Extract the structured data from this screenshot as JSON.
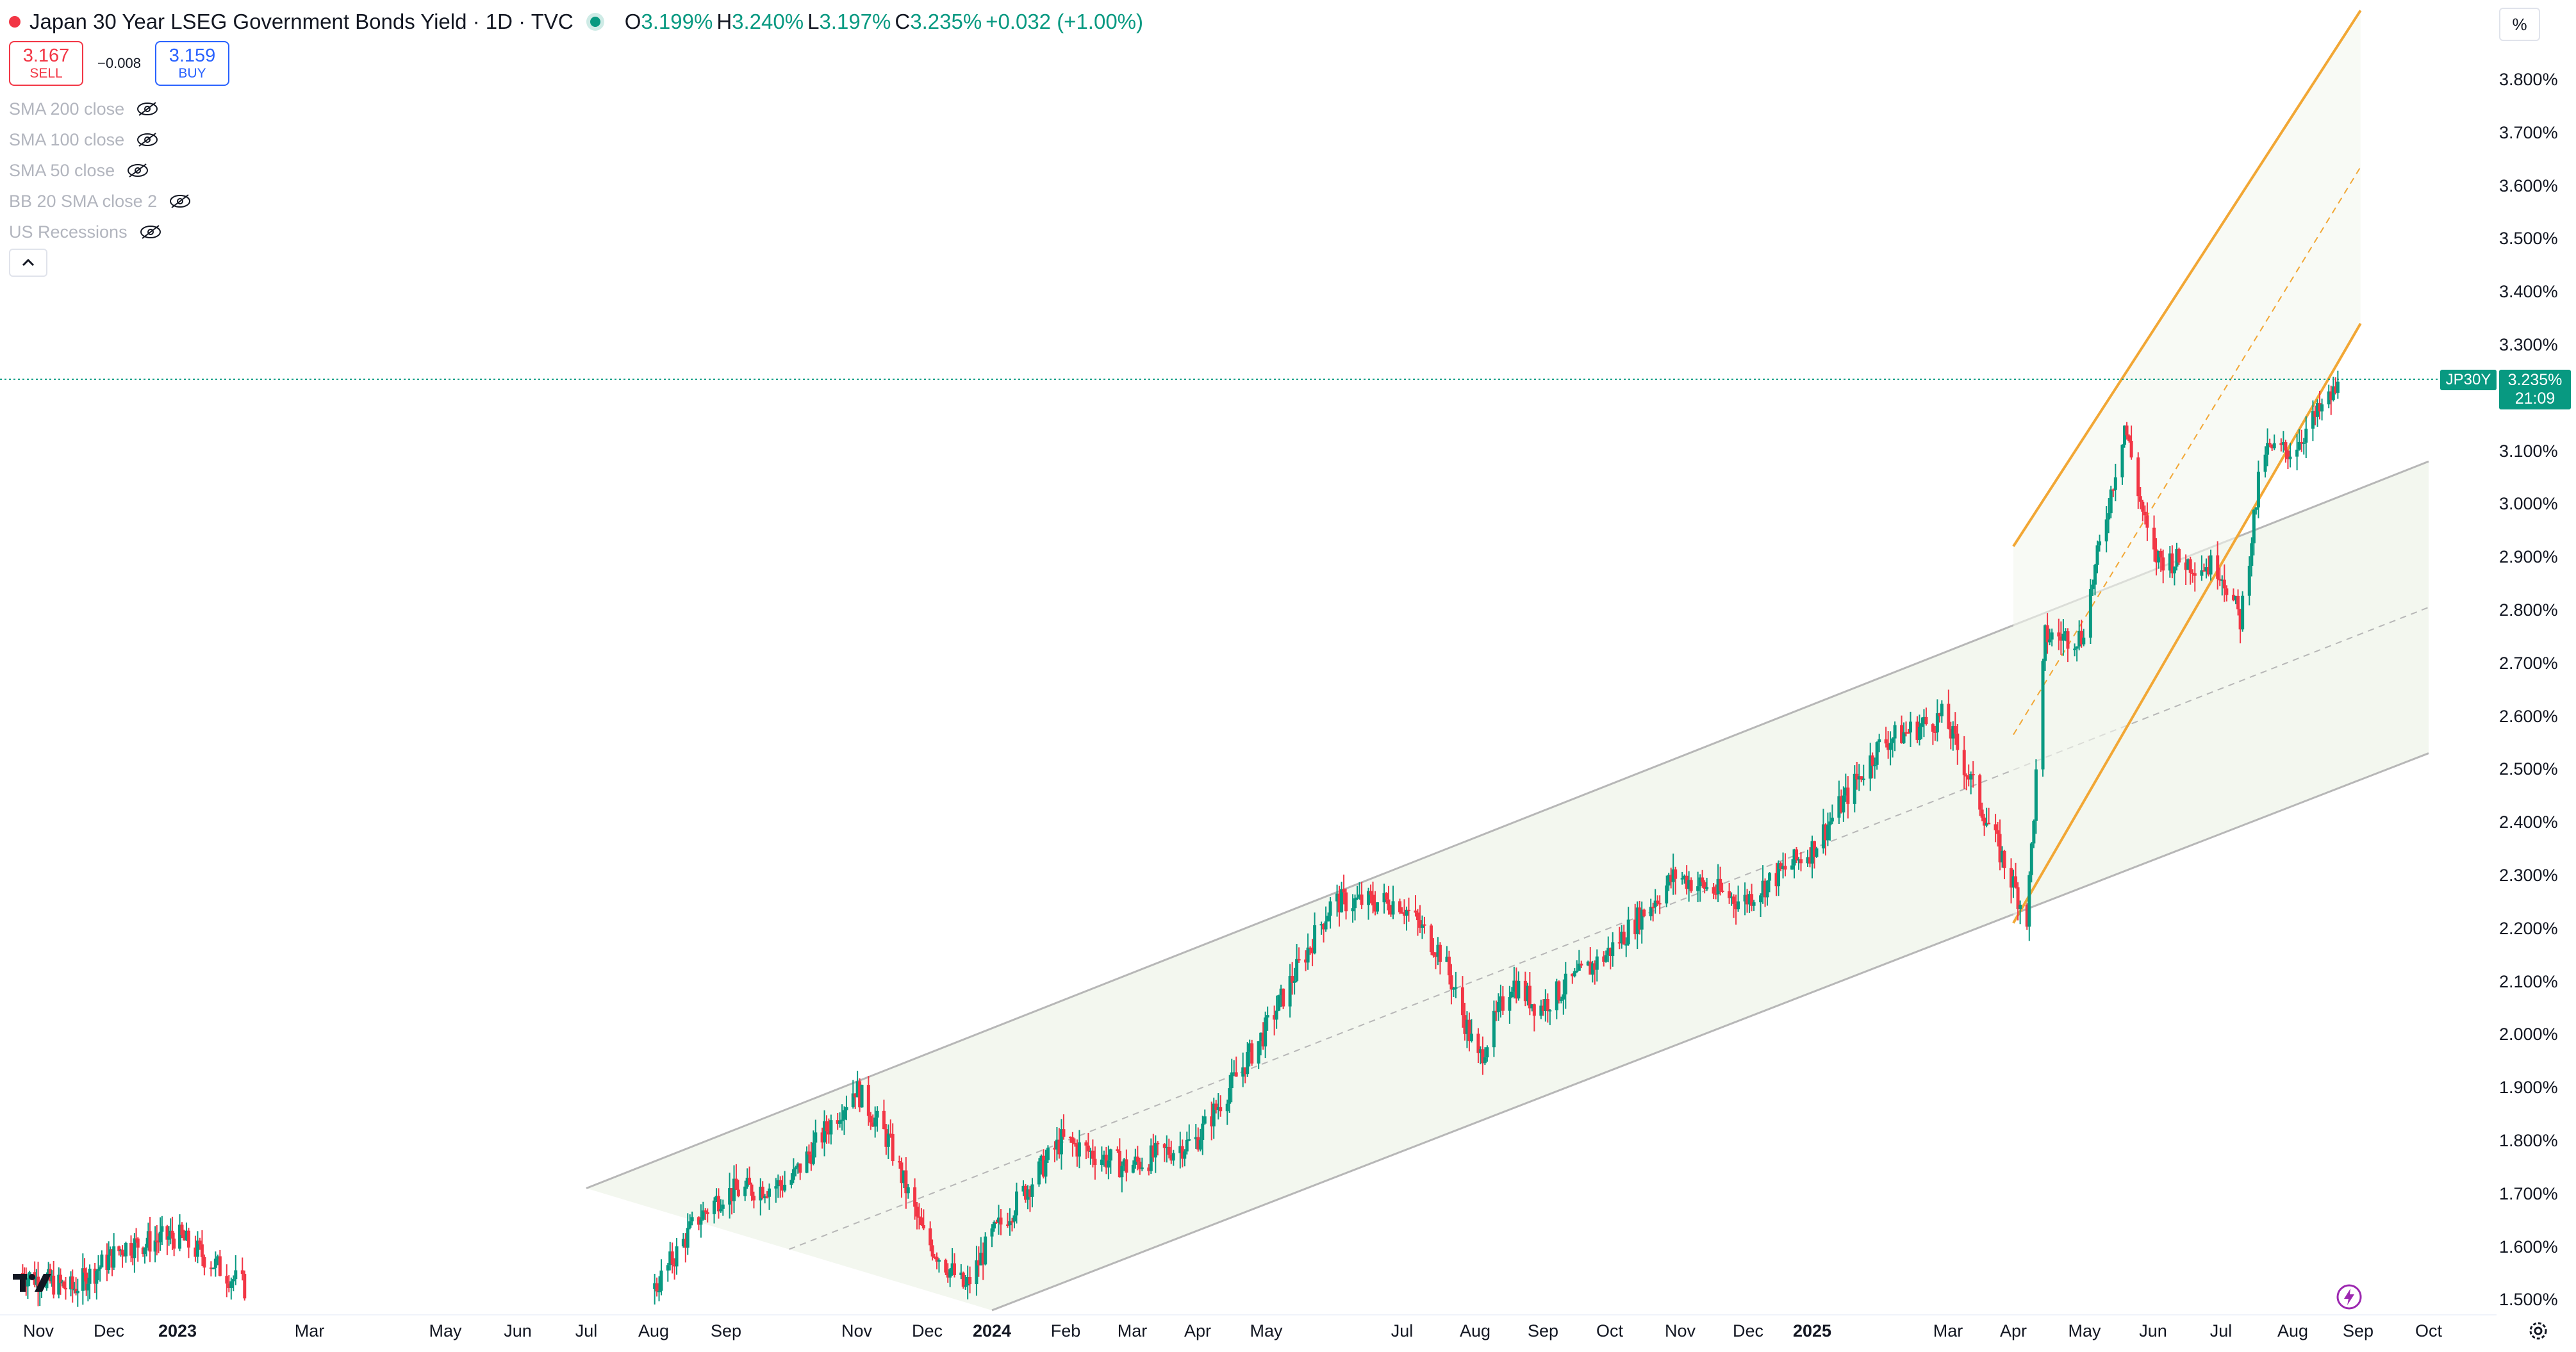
{
  "header": {
    "title": "Japan 30 Year LSEG Government Bonds Yield · 1D · TVC",
    "open_key": "O",
    "open_val": "3.199%",
    "high_key": "H",
    "high_val": "3.240%",
    "low_key": "L",
    "low_val": "3.197%",
    "close_key": "C",
    "close_val": "3.235%",
    "change": "+0.032 (+1.00%)"
  },
  "trade": {
    "sell_price": "3.167",
    "sell_label": "SELL",
    "spread": "−0.008",
    "buy_price": "3.159",
    "buy_label": "BUY"
  },
  "indicators": [
    {
      "label": "SMA 200 close"
    },
    {
      "label": "SMA 100 close"
    },
    {
      "label": "SMA 50 close"
    },
    {
      "label": "BB 20 SMA close 2"
    },
    {
      "label": "US Recessions"
    }
  ],
  "scale": {
    "unit_button": "%",
    "symbol_badge": "JP30Y",
    "last_price": "3.235%",
    "countdown": "21:09"
  },
  "colors": {
    "up": "#089981",
    "down": "#f23645",
    "channel_gray": "#b7b7b7",
    "channel_orange": "#f2a735",
    "channel_fill": "#f3f7ef"
  },
  "chart_data": {
    "type": "candlestick",
    "title": "Japan 30 Year LSEG Government Bonds Yield · 1D · TVC",
    "ylabel": "%",
    "ylim": [
      1.47,
      3.93
    ],
    "y_ticks": [
      "3.800%",
      "3.700%",
      "3.600%",
      "3.500%",
      "3.400%",
      "3.300%",
      "3.200%",
      "3.100%",
      "3.000%",
      "2.900%",
      "2.800%",
      "2.700%",
      "2.600%",
      "2.500%",
      "2.400%",
      "2.300%",
      "2.200%",
      "2.100%",
      "2.000%",
      "1.900%",
      "1.800%",
      "1.700%",
      "1.600%",
      "1.500%"
    ],
    "x_ticks": [
      {
        "label": "Nov",
        "bold": false
      },
      {
        "label": "Dec",
        "bold": false
      },
      {
        "label": "2023",
        "bold": true
      },
      {
        "label": "Mar",
        "bold": false
      },
      {
        "label": "May",
        "bold": false
      },
      {
        "label": "Jun",
        "bold": false
      },
      {
        "label": "Jul",
        "bold": false
      },
      {
        "label": "Aug",
        "bold": false
      },
      {
        "label": "Sep",
        "bold": false
      },
      {
        "label": "Nov",
        "bold": false
      },
      {
        "label": "Dec",
        "bold": false
      },
      {
        "label": "2024",
        "bold": true
      },
      {
        "label": "Feb",
        "bold": false
      },
      {
        "label": "Mar",
        "bold": false
      },
      {
        "label": "Apr",
        "bold": false
      },
      {
        "label": "May",
        "bold": false
      },
      {
        "label": "Jul",
        "bold": false
      },
      {
        "label": "Aug",
        "bold": false
      },
      {
        "label": "Sep",
        "bold": false
      },
      {
        "label": "Oct",
        "bold": false
      },
      {
        "label": "Nov",
        "bold": false
      },
      {
        "label": "Dec",
        "bold": false
      },
      {
        "label": "2025",
        "bold": true
      },
      {
        "label": "Mar",
        "bold": false
      },
      {
        "label": "Apr",
        "bold": false
      },
      {
        "label": "May",
        "bold": false
      },
      {
        "label": "Jun",
        "bold": false
      },
      {
        "label": "Jul",
        "bold": false
      },
      {
        "label": "Aug",
        "bold": false
      },
      {
        "label": "Sep",
        "bold": false
      },
      {
        "label": "Oct",
        "bold": false
      }
    ],
    "last_close": 3.235,
    "price_path": [
      {
        "date": "2022-10",
        "value": 1.55
      },
      {
        "date": "2022-11",
        "value": 1.52
      },
      {
        "date": "2022-12",
        "value": 1.6
      },
      {
        "date": "2023-01",
        "value": 1.62
      },
      {
        "date": "2023-02",
        "value": 1.52
      },
      {
        "date": "2023-08",
        "value": 1.52
      },
      {
        "date": "2023-08-20",
        "value": 1.65
      },
      {
        "date": "2023-09",
        "value": 1.7
      },
      {
        "date": "2023-10",
        "value": 1.72
      },
      {
        "date": "2023-10-31",
        "value": 1.9
      },
      {
        "date": "2023-11-15",
        "value": 1.8
      },
      {
        "date": "2023-12",
        "value": 1.62
      },
      {
        "date": "2023-12-20",
        "value": 1.52
      },
      {
        "date": "2024-01",
        "value": 1.62
      },
      {
        "date": "2024-02",
        "value": 1.8
      },
      {
        "date": "2024-03",
        "value": 1.75
      },
      {
        "date": "2024-04",
        "value": 1.8
      },
      {
        "date": "2024-05",
        "value": 2.0
      },
      {
        "date": "2024-06",
        "value": 2.25
      },
      {
        "date": "2024-07",
        "value": 2.25
      },
      {
        "date": "2024-07-20",
        "value": 2.15
      },
      {
        "date": "2024-08-05",
        "value": 1.95
      },
      {
        "date": "2024-08-20",
        "value": 2.1
      },
      {
        "date": "2024-09",
        "value": 2.05
      },
      {
        "date": "2024-10",
        "value": 2.15
      },
      {
        "date": "2024-11",
        "value": 2.3
      },
      {
        "date": "2024-12",
        "value": 2.25
      },
      {
        "date": "2025-01",
        "value": 2.35
      },
      {
        "date": "2025-02",
        "value": 2.55
      },
      {
        "date": "2025-03",
        "value": 2.6
      },
      {
        "date": "2025-04-07",
        "value": 2.22
      },
      {
        "date": "2025-04-15",
        "value": 2.75
      },
      {
        "date": "2025-05",
        "value": 2.75
      },
      {
        "date": "2025-05-20",
        "value": 3.15
      },
      {
        "date": "2025-06",
        "value": 2.9
      },
      {
        "date": "2025-07",
        "value": 2.88
      },
      {
        "date": "2025-07-10",
        "value": 2.78
      },
      {
        "date": "2025-07-20",
        "value": 3.1
      },
      {
        "date": "2025-08",
        "value": 3.1
      },
      {
        "date": "2025-08-25",
        "value": 3.235
      }
    ],
    "channels": [
      {
        "name": "",
        "style": "gray",
        "upper": [
          {
            "date": "2023-07",
            "value": 1.71
          },
          {
            "date": "2025-10",
            "value": 3.08
          }
        ],
        "lower": [
          {
            "date": "2024-01",
            "value": 1.48
          },
          {
            "date": "2025-10",
            "value": 2.53
          }
        ]
      },
      {
        "name": "",
        "style": "orange",
        "upper": [
          {
            "date": "2025-04",
            "value": 2.92
          },
          {
            "date": "2025-09",
            "value": 3.93
          }
        ],
        "lower": [
          {
            "date": "2025-04",
            "value": 2.21
          },
          {
            "date": "2025-09",
            "value": 3.34
          }
        ]
      }
    ],
    "grid": false
  }
}
